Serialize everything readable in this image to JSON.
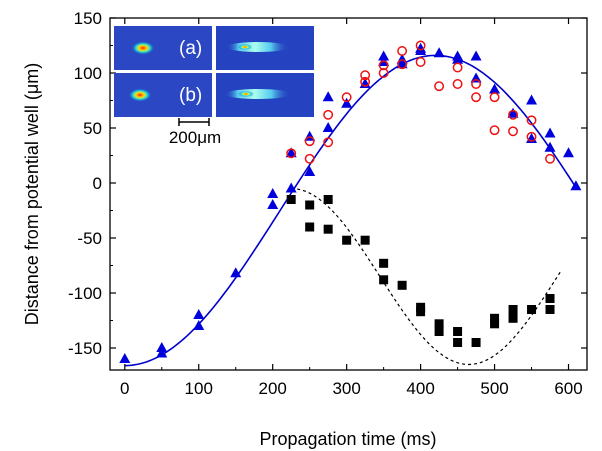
{
  "chart_data": {
    "type": "scatter",
    "xlabel": "Propagation time (ms)",
    "ylabel": "Distance from potential well (μm)",
    "xlim": [
      -20,
      625
    ],
    "ylim": [
      -170,
      150
    ],
    "x_ticks": [
      0,
      100,
      200,
      300,
      400,
      500,
      600
    ],
    "y_ticks": [
      -150,
      -100,
      -50,
      0,
      50,
      100,
      150
    ],
    "grid": false,
    "colors": {
      "blue_triangles": "#0000dd",
      "red_circles": "#ee1111",
      "black_squares": "#000000",
      "fit_line": "#0000cc",
      "dashed_line": "#000000"
    },
    "series": [
      {
        "marker": "triangle",
        "color": "#0000dd",
        "points": [
          [
            0,
            -160
          ],
          [
            50,
            -150
          ],
          [
            50,
            -155
          ],
          [
            100,
            -120
          ],
          [
            100,
            -130
          ],
          [
            150,
            -82
          ],
          [
            200,
            -10
          ],
          [
            200,
            -20
          ],
          [
            225,
            -5
          ],
          [
            225,
            27
          ],
          [
            250,
            42
          ],
          [
            250,
            10
          ],
          [
            275,
            78
          ],
          [
            275,
            50
          ],
          [
            300,
            72
          ],
          [
            325,
            90
          ],
          [
            350,
            115
          ],
          [
            350,
            110
          ],
          [
            375,
            112
          ],
          [
            375,
            108
          ],
          [
            400,
            120
          ],
          [
            400,
            122
          ],
          [
            425,
            118
          ],
          [
            450,
            112
          ],
          [
            450,
            115
          ],
          [
            475,
            95
          ],
          [
            475,
            115
          ],
          [
            500,
            85
          ],
          [
            525,
            63
          ],
          [
            550,
            75
          ],
          [
            550,
            40
          ],
          [
            575,
            32
          ],
          [
            575,
            45
          ],
          [
            600,
            27
          ],
          [
            610,
            -3
          ]
        ]
      },
      {
        "marker": "circle-open",
        "color": "#ee1111",
        "points": [
          [
            225,
            27
          ],
          [
            250,
            38
          ],
          [
            250,
            22
          ],
          [
            275,
            62
          ],
          [
            275,
            37
          ],
          [
            300,
            78
          ],
          [
            325,
            98
          ],
          [
            325,
            92
          ],
          [
            350,
            100
          ],
          [
            350,
            107
          ],
          [
            375,
            120
          ],
          [
            375,
            108
          ],
          [
            400,
            125
          ],
          [
            400,
            110
          ],
          [
            425,
            88
          ],
          [
            450,
            105
          ],
          [
            450,
            90
          ],
          [
            475,
            90
          ],
          [
            475,
            78
          ],
          [
            500,
            48
          ],
          [
            500,
            78
          ],
          [
            525,
            62
          ],
          [
            525,
            47
          ],
          [
            550,
            57
          ],
          [
            550,
            42
          ],
          [
            575,
            22
          ]
        ]
      },
      {
        "marker": "square",
        "color": "#000000",
        "points": [
          [
            225,
            -15
          ],
          [
            250,
            -20
          ],
          [
            250,
            -40
          ],
          [
            275,
            -15
          ],
          [
            275,
            -42
          ],
          [
            300,
            -52
          ],
          [
            325,
            -52
          ],
          [
            350,
            -73
          ],
          [
            350,
            -88
          ],
          [
            375,
            -93
          ],
          [
            400,
            -113
          ],
          [
            400,
            -117
          ],
          [
            425,
            -128
          ],
          [
            425,
            -135
          ],
          [
            450,
            -135
          ],
          [
            450,
            -145
          ],
          [
            475,
            -145
          ],
          [
            500,
            -123
          ],
          [
            500,
            -128
          ],
          [
            525,
            -115
          ],
          [
            525,
            -123
          ],
          [
            550,
            -115
          ],
          [
            575,
            -105
          ],
          [
            575,
            -115
          ]
        ]
      }
    ],
    "fit_curve": {
      "style": "solid",
      "color": "#0000cc",
      "center": -25,
      "amplitude": 141,
      "period_ms": 840,
      "phase_ms": 0
    },
    "dashed_curve": {
      "style": "dashed",
      "color": "#000000"
    },
    "inset": {
      "labels": [
        "(a)",
        "(b)"
      ],
      "scale_bar_label": "200μm"
    }
  }
}
